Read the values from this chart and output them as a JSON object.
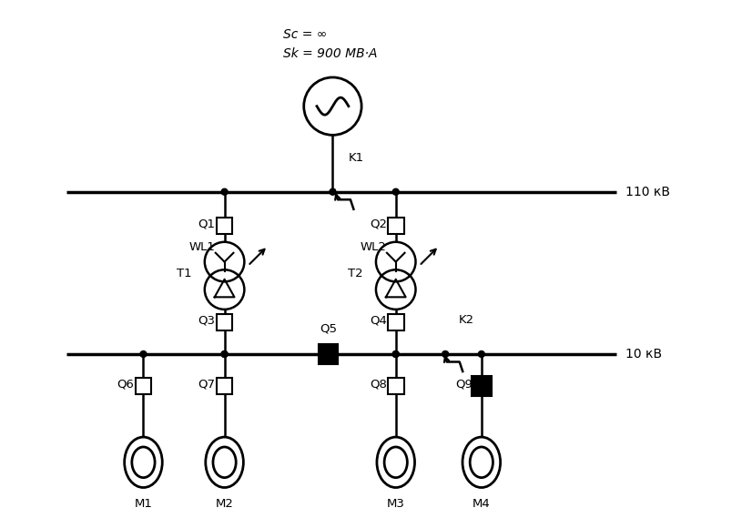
{
  "bg_color": "#ffffff",
  "line_color": "#000000",
  "lw_bus": 2.5,
  "lw_main": 1.8,
  "lw_thin": 1.3,
  "sc_text": "Sc = ∞",
  "sk_text": "Sk = 900 МВ·А",
  "kv110_text": "110 кВ",
  "kv10_text": "10 кВ",
  "fig_width": 8.15,
  "fig_height": 5.69,
  "dpi": 100
}
